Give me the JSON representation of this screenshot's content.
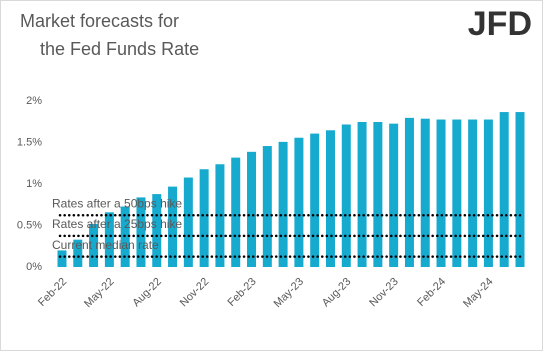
{
  "chart_data": {
    "type": "bar",
    "title": "Market forecasts for the Fed Funds Rate",
    "logo": "JFD",
    "categories": [
      "Feb-22",
      null,
      null,
      "May-22",
      null,
      null,
      "Aug-22",
      null,
      null,
      "Nov-22",
      null,
      null,
      "Feb-23",
      null,
      null,
      "May-23",
      null,
      null,
      "Aug-23",
      null,
      null,
      "Nov-23",
      null,
      null,
      "Feb-24",
      null,
      null,
      "May-24",
      null,
      null
    ],
    "values": [
      0.2,
      0.33,
      0.52,
      0.66,
      0.73,
      0.84,
      0.88,
      0.97,
      1.08,
      1.18,
      1.24,
      1.32,
      1.39,
      1.46,
      1.51,
      1.56,
      1.61,
      1.65,
      1.72,
      1.75,
      1.75,
      1.73,
      1.8,
      1.79,
      1.78,
      1.78,
      1.78,
      1.78,
      1.87,
      1.87
    ],
    "color": "#17aacf",
    "ylim": [
      0,
      2.1
    ],
    "yticks": [
      {
        "value": 0,
        "label": "0%"
      },
      {
        "value": 0.5,
        "label": "0.5%"
      },
      {
        "value": 1,
        "label": "1%"
      },
      {
        "value": 1.5,
        "label": "1.5%"
      },
      {
        "value": 2,
        "label": "2%"
      }
    ],
    "reference_lines": [
      {
        "label": "Rates after a 50bps hike",
        "value": 0.625
      },
      {
        "label": "Rates after a 25bps hike",
        "value": 0.375
      },
      {
        "label": "Current median rate",
        "value": 0.125
      }
    ],
    "grid": false
  }
}
